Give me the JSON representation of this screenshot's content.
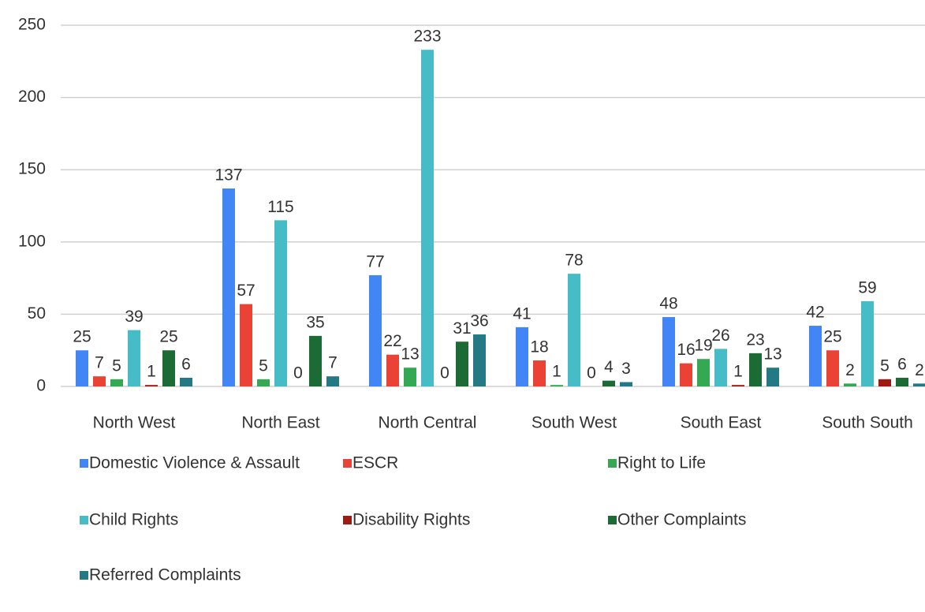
{
  "chart_data": {
    "type": "bar",
    "categories": [
      "North West",
      "North East",
      "North Central",
      "South West",
      "South East",
      "South South"
    ],
    "series": [
      {
        "name": "Domestic Violence & Assault",
        "color": "#4285f4",
        "values": [
          25,
          137,
          77,
          41,
          48,
          42
        ]
      },
      {
        "name": "ESCR",
        "color": "#ea4335",
        "values": [
          7,
          57,
          22,
          18,
          16,
          25
        ]
      },
      {
        "name": "Right to Life",
        "color": "#34a853",
        "values": [
          5,
          5,
          13,
          1,
          19,
          2
        ]
      },
      {
        "name": "Child Rights",
        "color": "#46bdc6",
        "values": [
          39,
          115,
          233,
          78,
          26,
          59
        ]
      },
      {
        "name": "Disability Rights",
        "color": "#9e1b14",
        "values": [
          1,
          0,
          0,
          0,
          1,
          5
        ]
      },
      {
        "name": "Other Complaints",
        "color": "#1d6b34",
        "values": [
          25,
          35,
          31,
          4,
          23,
          6
        ]
      },
      {
        "name": "Referred Complaints",
        "color": "#247a84",
        "values": [
          6,
          7,
          36,
          3,
          13,
          2
        ]
      }
    ],
    "ylim": [
      0,
      250
    ],
    "yticks": [
      0,
      50,
      100,
      150,
      200,
      250
    ],
    "grid": true,
    "legend": "bottom"
  }
}
